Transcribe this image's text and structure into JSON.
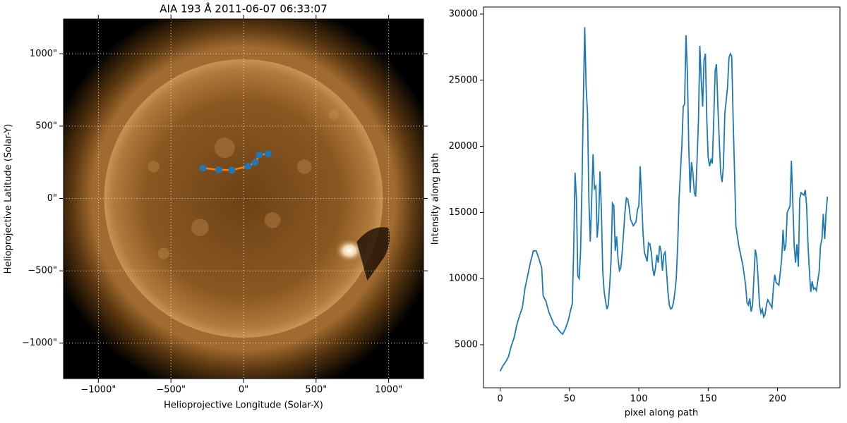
{
  "chart_data": [
    {
      "type": "image",
      "title": "AIA 193 Å 2011-06-07 06:33:07",
      "xlabel": "Helioprojective Longitude (Solar-X)",
      "ylabel": "Helioprojective Latitude (Solar-Y)",
      "xlim": [
        -1240,
        1240
      ],
      "ylim": [
        -1245,
        1240
      ],
      "xticks": [
        {
          "value": -1000,
          "label": "−1000\""
        },
        {
          "value": -500,
          "label": "−500\""
        },
        {
          "value": 0,
          "label": "0\""
        },
        {
          "value": 500,
          "label": "500\""
        },
        {
          "value": 1000,
          "label": "1000\""
        }
      ],
      "yticks": [
        {
          "value": -1000,
          "label": "−1000\""
        },
        {
          "value": -500,
          "label": "−500\""
        },
        {
          "value": 0,
          "label": "0\""
        },
        {
          "value": 500,
          "label": "500\""
        },
        {
          "value": 1000,
          "label": "1000\""
        }
      ],
      "grid": true,
      "path": {
        "x": [
          -280,
          -170,
          -80,
          30,
          80,
          110,
          170
        ],
        "y": [
          210,
          198,
          196,
          222,
          250,
          300,
          310
        ],
        "line_color": "#ff7f0e",
        "marker_color": "#1f77b4"
      }
    },
    {
      "type": "line",
      "xlabel": "pixel along path",
      "ylabel": "Intensity along path",
      "xlim": [
        -12,
        245
      ],
      "ylim": [
        1750,
        30530
      ],
      "xticks": [
        0,
        50,
        100,
        150,
        200
      ],
      "yticks": [
        5000,
        10000,
        15000,
        20000,
        25000,
        30000
      ],
      "color": "#1f77b4",
      "x": [
        0,
        2,
        4,
        6,
        8,
        10,
        12,
        14,
        16,
        18,
        20,
        22,
        24,
        26,
        28,
        30,
        31,
        33,
        35,
        37,
        39,
        41,
        43,
        45,
        47,
        49,
        51,
        52,
        53,
        54,
        55,
        56,
        57,
        58,
        59,
        60,
        61,
        62,
        63,
        64,
        65,
        66,
        67,
        68,
        69,
        70,
        71,
        72,
        73,
        74,
        75,
        76,
        77,
        78,
        79,
        80,
        81,
        82,
        83,
        84,
        85,
        86,
        87,
        88,
        89,
        90,
        91,
        92,
        93,
        94,
        96,
        98,
        99,
        100,
        101,
        102,
        103,
        104,
        106,
        107,
        108,
        109,
        110,
        111,
        112,
        113,
        114,
        115,
        116,
        117,
        118,
        119,
        120,
        121,
        122,
        123,
        124,
        125,
        126,
        127,
        128,
        129,
        130,
        131,
        132,
        133,
        134,
        135,
        136,
        137,
        138,
        139,
        140,
        141,
        142,
        143,
        144,
        145,
        146,
        147,
        148,
        149,
        150,
        151,
        152,
        153,
        154,
        155,
        156,
        157,
        158,
        159,
        160,
        161,
        162,
        163,
        164,
        165,
        166,
        167,
        168,
        169,
        170,
        172,
        175,
        177,
        178,
        179,
        180,
        181,
        182,
        184,
        185,
        186,
        187,
        188,
        189,
        190,
        191,
        192,
        193,
        194,
        196,
        197,
        198,
        199,
        201,
        202,
        203,
        204,
        205,
        206,
        207,
        209,
        210,
        211,
        212,
        213,
        214,
        215,
        216,
        217,
        219,
        220,
        221,
        222,
        223,
        224,
        225,
        226,
        227,
        228,
        230,
        231,
        232,
        233,
        234,
        235,
        236
      ],
      "values": [
        3000,
        3400,
        3700,
        4100,
        4900,
        5500,
        6500,
        7200,
        7800,
        9300,
        10300,
        11300,
        12100,
        12100,
        11500,
        10800,
        8700,
        8300,
        7500,
        7000,
        6500,
        6300,
        6000,
        5800,
        6200,
        6800,
        7700,
        8100,
        12000,
        18000,
        16000,
        10200,
        10000,
        12000,
        17000,
        23500,
        29000,
        24500,
        22500,
        16000,
        12800,
        16000,
        19400,
        16800,
        17000,
        13100,
        14500,
        18100,
        15200,
        10500,
        9000,
        8300,
        7700,
        8000,
        9500,
        11500,
        15700,
        15500,
        12100,
        13200,
        11500,
        10600,
        10800,
        12000,
        13500,
        15000,
        16100,
        16000,
        15400,
        14500,
        14000,
        14300,
        15200,
        15500,
        18500,
        16000,
        13500,
        12000,
        11300,
        12700,
        12600,
        12000,
        10800,
        10200,
        10800,
        11800,
        11200,
        12500,
        12100,
        10600,
        11800,
        12000,
        10500,
        9000,
        8000,
        7700,
        7800,
        8200,
        9000,
        10000,
        12500,
        16000,
        18000,
        20000,
        23000,
        23200,
        28400,
        25500,
        20000,
        16500,
        18800,
        18000,
        16500,
        16200,
        19000,
        22000,
        27600,
        25000,
        23000,
        26500,
        27000,
        22000,
        19200,
        18500,
        19000,
        18700,
        22000,
        25700,
        26200,
        23000,
        20500,
        18000,
        17300,
        18500,
        22500,
        23500,
        24500,
        26700,
        27000,
        26800,
        22000,
        18000,
        14000,
        12500,
        11000,
        9500,
        8200,
        8000,
        8500,
        7500,
        8000,
        12200,
        11600,
        10000,
        8000,
        7400,
        7700,
        7100,
        7300,
        8000,
        8400,
        8200,
        7800,
        9300,
        10300,
        9700,
        9500,
        10500,
        11500,
        13700,
        12100,
        12600,
        15000,
        15500,
        18900,
        15800,
        12500,
        11200,
        12600,
        10900,
        16000,
        16500,
        16300,
        16700,
        15500,
        12500,
        10500,
        9000,
        9800,
        9200,
        9300,
        9100,
        10500,
        12500,
        13000,
        14900,
        13000,
        15000,
        16200
      ]
    }
  ]
}
